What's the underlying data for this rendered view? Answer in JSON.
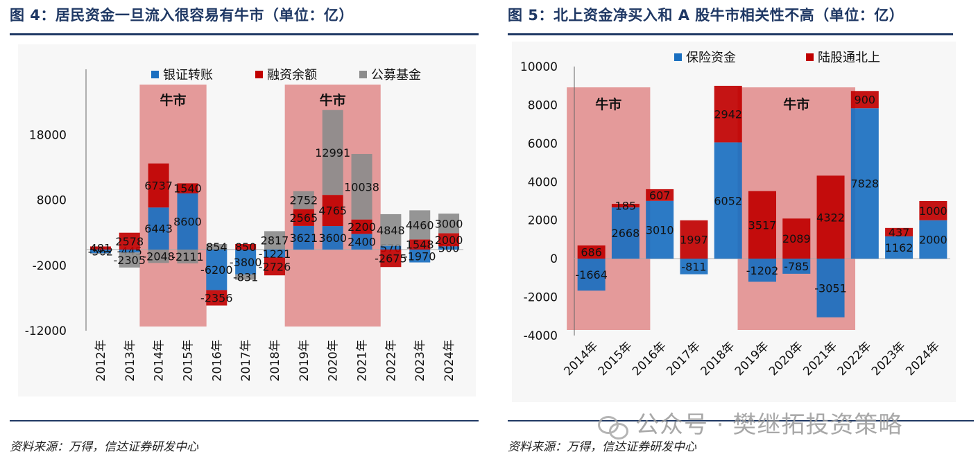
{
  "charts": [
    {
      "title": "图 4：居民资金一旦流入很容易有牛市（单位：亿）",
      "source": "资料来源：万得，信达证券研发中心"
    },
    {
      "title": "图 5：北上资金净买入和 A 股牛市相关性不高（单位：亿）",
      "source": "资料来源：万得，信达证券研发中心"
    }
  ],
  "watermark": "公众号 · 樊继拓投资策略",
  "colors": {
    "blue": "#1a6fc0",
    "red": "#c00000",
    "gray": "#8c8c8c",
    "bull_zone": "#e08a8a",
    "title": "#1f3864"
  },
  "chart_data": [
    {
      "type": "bar",
      "stacking": "stacked-overlap",
      "title": "图 4：居民资金一旦流入很容易有牛市（单位：亿）",
      "categories": [
        "2012年",
        "2013年",
        "2014年",
        "2015年",
        "2016年",
        "2017年",
        "2018年",
        "2019年",
        "2020年",
        "2021年",
        "2022年",
        "2023年",
        "2024年"
      ],
      "series": [
        {
          "name": "银证转账",
          "color": "#1a6fc0",
          "values": [
            -562,
            -445,
            6443,
            8600,
            -6200,
            -3800,
            -1221,
            3621,
            3600,
            2400,
            570,
            -1970,
            500
          ]
        },
        {
          "name": "融资余额",
          "color": "#c00000",
          "values": [
            481,
            2578,
            6737,
            1540,
            -2356,
            850,
            -2726,
            2565,
            4765,
            2200,
            -2675,
            1548,
            2000
          ]
        },
        {
          "name": "公募基金",
          "color": "#8c8c8c",
          "values": [
            -100,
            -2305,
            -2048,
            -2111,
            854,
            -831,
            2817,
            2752,
            12991,
            10038,
            4848,
            4460,
            3000
          ]
        }
      ],
      "labels": [
        [
          "-562",
          "481",
          ""
        ],
        [
          "-445",
          "2578",
          "-2305"
        ],
        [
          "6443",
          "6737",
          "-2048"
        ],
        [
          "8600",
          "1540",
          "-2111"
        ],
        [
          "-6200",
          "-2356",
          "854"
        ],
        [
          "-3800",
          "850",
          "-831"
        ],
        [
          "-1221",
          "-2726",
          "2817"
        ],
        [
          "3621",
          "2565",
          "2752"
        ],
        [
          "3600",
          "4765",
          "12991"
        ],
        [
          "2400",
          "2200",
          "10038"
        ],
        [
          "570",
          "-2675",
          "4848"
        ],
        [
          "-1970",
          "1548",
          "4460"
        ],
        [
          "500",
          "2000",
          "3000"
        ]
      ],
      "ylim": [
        -12000,
        28000
      ],
      "yticks": [
        -12000,
        -2000,
        8000,
        18000
      ],
      "bull_markets": [
        {
          "label": "牛市",
          "from": "2014年",
          "to": "2015年"
        },
        {
          "label": "牛市",
          "from": "2019年",
          "to": "2021年"
        }
      ],
      "legend": [
        "银证转账",
        "融资余额",
        "公募基金"
      ]
    },
    {
      "type": "bar",
      "stacking": "stacked",
      "title": "图 5：北上资金净买入和 A 股牛市相关性不高（单位：亿）",
      "categories": [
        "2014年",
        "2015年",
        "2016年",
        "2017年",
        "2018年",
        "2019年",
        "2020年",
        "2021年",
        "2022年",
        "2023年",
        "2024年"
      ],
      "series": [
        {
          "name": "保险资金",
          "color": "#1a6fc0",
          "values": [
            -1664,
            2668,
            3010,
            -811,
            6052,
            -1202,
            -785,
            -3051,
            7828,
            1162,
            2000
          ]
        },
        {
          "name": "陆股通北上",
          "color": "#c00000",
          "values": [
            686,
            185,
            607,
            1997,
            2942,
            3517,
            2089,
            4322,
            900,
            437,
            1000
          ]
        }
      ],
      "ylim": [
        -4000,
        10000
      ],
      "yticks": [
        -4000,
        -2000,
        0,
        2000,
        4000,
        6000,
        8000,
        10000
      ],
      "bull_markets": [
        {
          "label": "牛市",
          "from": "2014年",
          "to": "2015年"
        },
        {
          "label": "牛市",
          "from": "2019年",
          "to": "2021年"
        }
      ],
      "legend": [
        "保险资金",
        "陆股通北上"
      ]
    }
  ]
}
